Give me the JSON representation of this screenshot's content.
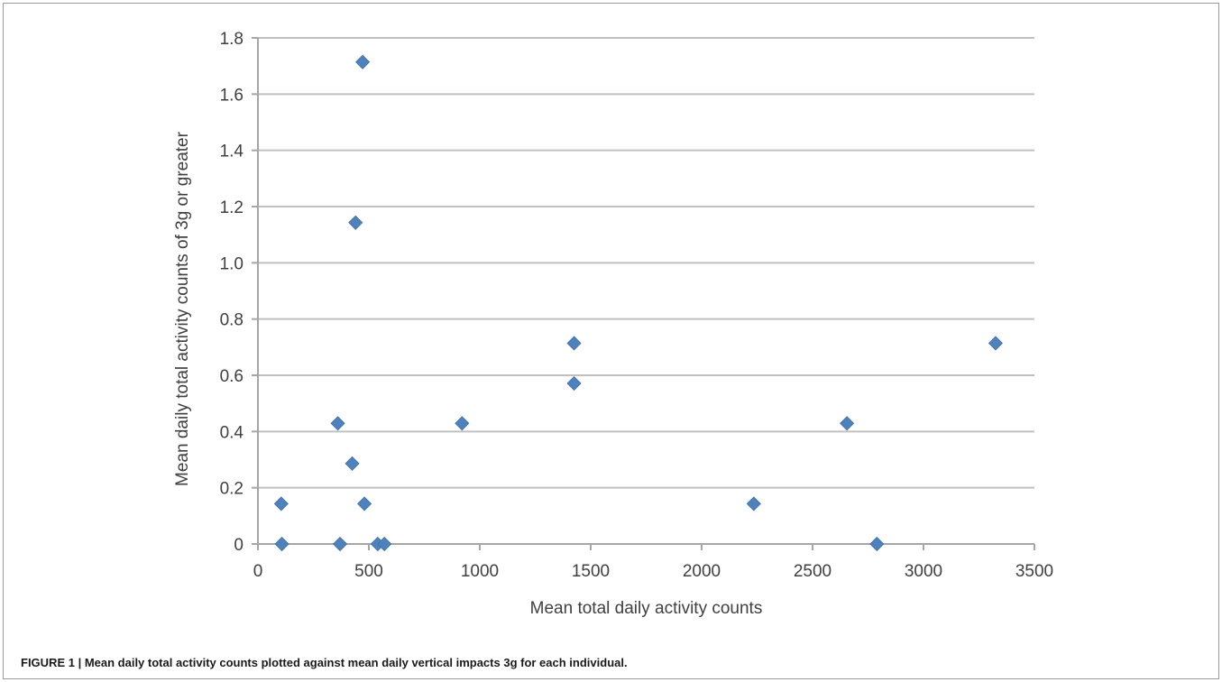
{
  "chart_data": {
    "type": "scatter",
    "title": "",
    "xlabel": "Mean total daily activity counts",
    "ylabel": "Mean daily total activity counts of 3g or greater",
    "xlim": [
      0,
      3500
    ],
    "ylim": [
      0,
      1.8
    ],
    "x_ticks": [
      0,
      500,
      1000,
      1500,
      2000,
      2500,
      3000,
      3500
    ],
    "x_tick_labels": [
      "0",
      "500",
      "1000",
      "1500",
      "2000",
      "2500",
      "3000",
      "3500"
    ],
    "y_ticks": [
      0,
      0.2,
      0.4,
      0.6,
      0.8,
      1.0,
      1.2,
      1.4,
      1.6,
      1.8
    ],
    "y_tick_labels": [
      "0",
      "0.2",
      "0.4",
      "0.6",
      "0.8",
      "1.0",
      "1.2",
      "1.4",
      "1.6",
      "1.8"
    ],
    "grid": "horizontal",
    "marker": "diamond",
    "marker_color": "#4f81bd",
    "grid_color": "#c0c0c0",
    "points": [
      {
        "x": 105,
        "y": 0.143
      },
      {
        "x": 108,
        "y": 0
      },
      {
        "x": 360,
        "y": 0.429
      },
      {
        "x": 370,
        "y": 0
      },
      {
        "x": 425,
        "y": 0.286
      },
      {
        "x": 440,
        "y": 1.143
      },
      {
        "x": 472,
        "y": 1.714
      },
      {
        "x": 480,
        "y": 0.143
      },
      {
        "x": 540,
        "y": 0
      },
      {
        "x": 570,
        "y": 0
      },
      {
        "x": 920,
        "y": 0.429
      },
      {
        "x": 1425,
        "y": 0.714
      },
      {
        "x": 1425,
        "y": 0.571
      },
      {
        "x": 2235,
        "y": 0.143
      },
      {
        "x": 2655,
        "y": 0.429
      },
      {
        "x": 2790,
        "y": 0
      },
      {
        "x": 3325,
        "y": 0.714
      }
    ]
  },
  "caption": "FIGURE 1 | Mean daily total activity counts plotted against mean daily vertical impacts    3g for each individual."
}
